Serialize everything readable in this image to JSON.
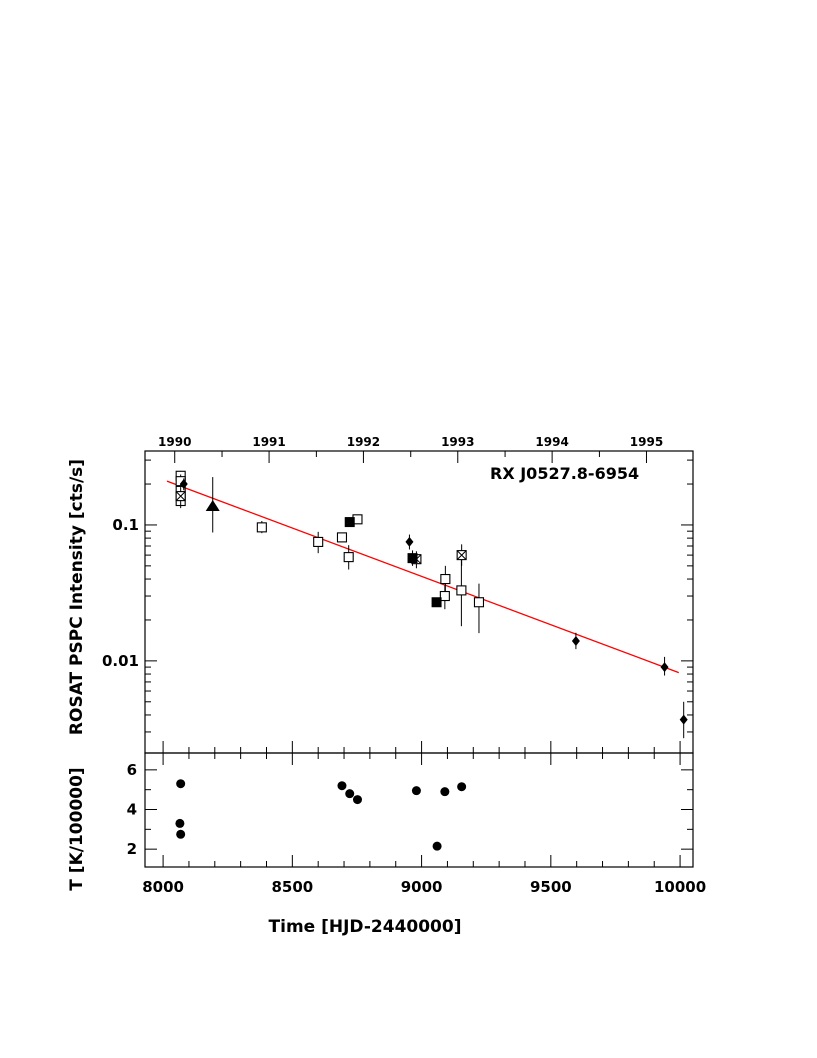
{
  "chart_data": [
    {
      "type": "scatter",
      "panel": "top",
      "ylabel": "ROSAT  PSPC Intensity  [cts/s]",
      "yscale": "log",
      "ylim": [
        0.0021,
        0.35
      ],
      "xlim": [
        7930,
        10050
      ],
      "y_ticks": [
        {
          "value": 0.01,
          "label": "0.01"
        },
        {
          "value": 0.1,
          "label": "0.1"
        }
      ],
      "annotation": "RX  J0527.8-6954",
      "top_axis_years": [
        {
          "label": "1990",
          "x": 8045
        },
        {
          "label": "1991",
          "x": 8410
        },
        {
          "label": "1992",
          "x": 8775
        },
        {
          "label": "1993",
          "x": 9140
        },
        {
          "label": "1994",
          "x": 9505
        },
        {
          "label": "1995",
          "x": 9870
        }
      ],
      "series": [
        {
          "marker": "open-square",
          "points": [
            {
              "x": 8068,
              "y": 0.23,
              "ylo": 0.2,
              "yhi": 0.25
            },
            {
              "x": 8068,
              "y": 0.21,
              "ylo": 0.185,
              "yhi": 0.235
            },
            {
              "x": 8068,
              "y": 0.178,
              "ylo": 0.158,
              "yhi": 0.2
            },
            {
              "x": 8068,
              "y": 0.15,
              "ylo": 0.133,
              "yhi": 0.17
            },
            {
              "x": 8382,
              "y": 0.096,
              "ylo": 0.087,
              "yhi": 0.107
            },
            {
              "x": 8600,
              "y": 0.075,
              "ylo": 0.062,
              "yhi": 0.089
            },
            {
              "x": 8692,
              "y": 0.081,
              "ylo": 0.076,
              "yhi": 0.086
            },
            {
              "x": 8718,
              "y": 0.058,
              "ylo": 0.047,
              "yhi": 0.071
            },
            {
              "x": 8752,
              "y": 0.11,
              "ylo": 0.104,
              "yhi": 0.116
            },
            {
              "x": 9092,
              "y": 0.04,
              "ylo": 0.032,
              "yhi": 0.05
            },
            {
              "x": 9090,
              "y": 0.03,
              "ylo": 0.024,
              "yhi": 0.036
            },
            {
              "x": 9154,
              "y": 0.033,
              "ylo": 0.018,
              "yhi": 0.06
            },
            {
              "x": 9222,
              "y": 0.027,
              "ylo": 0.016,
              "yhi": 0.037
            }
          ]
        },
        {
          "marker": "crossed-square",
          "points": [
            {
              "x": 8068,
              "y": 0.163,
              "ylo": 0.14,
              "yhi": 0.19
            },
            {
              "x": 8980,
              "y": 0.056,
              "ylo": 0.048,
              "yhi": 0.064
            },
            {
              "x": 9155,
              "y": 0.06,
              "ylo": 0.05,
              "yhi": 0.072
            }
          ]
        },
        {
          "marker": "filled-square",
          "points": [
            {
              "x": 8722,
              "y": 0.105,
              "ylo": 0.1,
              "yhi": 0.11
            },
            {
              "x": 8965,
              "y": 0.057,
              "ylo": 0.05,
              "yhi": 0.065
            },
            {
              "x": 9058,
              "y": 0.027,
              "ylo": 0.025,
              "yhi": 0.029
            }
          ]
        },
        {
          "marker": "filled-triangle",
          "points": [
            {
              "x": 8192,
              "y": 0.138,
              "ylo": 0.088,
              "yhi": 0.225
            }
          ]
        },
        {
          "marker": "filled-diamond",
          "points": [
            {
              "x": 8080,
              "y": 0.2,
              "ylo": 0.18,
              "yhi": 0.22
            },
            {
              "x": 8953,
              "y": 0.075,
              "ylo": 0.066,
              "yhi": 0.085
            },
            {
              "x": 9597,
              "y": 0.014,
              "ylo": 0.0122,
              "yhi": 0.0161
            },
            {
              "x": 9940,
              "y": 0.009,
              "ylo": 0.0078,
              "yhi": 0.0107
            },
            {
              "x": 10014,
              "y": 0.0037,
              "ylo": 0.0027,
              "yhi": 0.005
            }
          ]
        }
      ],
      "fit_line": {
        "color": "#ff0000",
        "x": [
          8015,
          9995
        ],
        "y": [
          0.21,
          0.0082
        ]
      }
    },
    {
      "type": "scatter",
      "panel": "bottom",
      "xlabel": "Time  [HJD-2440000]",
      "ylabel": "T  [K/100000]",
      "xlim": [
        7930,
        10050
      ],
      "ylim": [
        1.1,
        6.85
      ],
      "x_ticks": [
        {
          "value": 8000,
          "label": "8000"
        },
        {
          "value": 8500,
          "label": "8500"
        },
        {
          "value": 9000,
          "label": "9000"
        },
        {
          "value": 9500,
          "label": "9500"
        },
        {
          "value": 10000,
          "label": "10000"
        }
      ],
      "y_ticks": [
        {
          "value": 2,
          "label": "2"
        },
        {
          "value": 4,
          "label": "4"
        },
        {
          "value": 6,
          "label": "6"
        }
      ],
      "points": [
        {
          "x": 8068,
          "y": 5.3
        },
        {
          "x": 8065,
          "y": 3.3
        },
        {
          "x": 8068,
          "y": 2.75
        },
        {
          "x": 8692,
          "y": 5.2
        },
        {
          "x": 8722,
          "y": 4.8
        },
        {
          "x": 8752,
          "y": 4.5
        },
        {
          "x": 8980,
          "y": 4.95
        },
        {
          "x": 9060,
          "y": 2.15
        },
        {
          "x": 9090,
          "y": 4.9
        },
        {
          "x": 9155,
          "y": 5.15
        }
      ]
    }
  ]
}
